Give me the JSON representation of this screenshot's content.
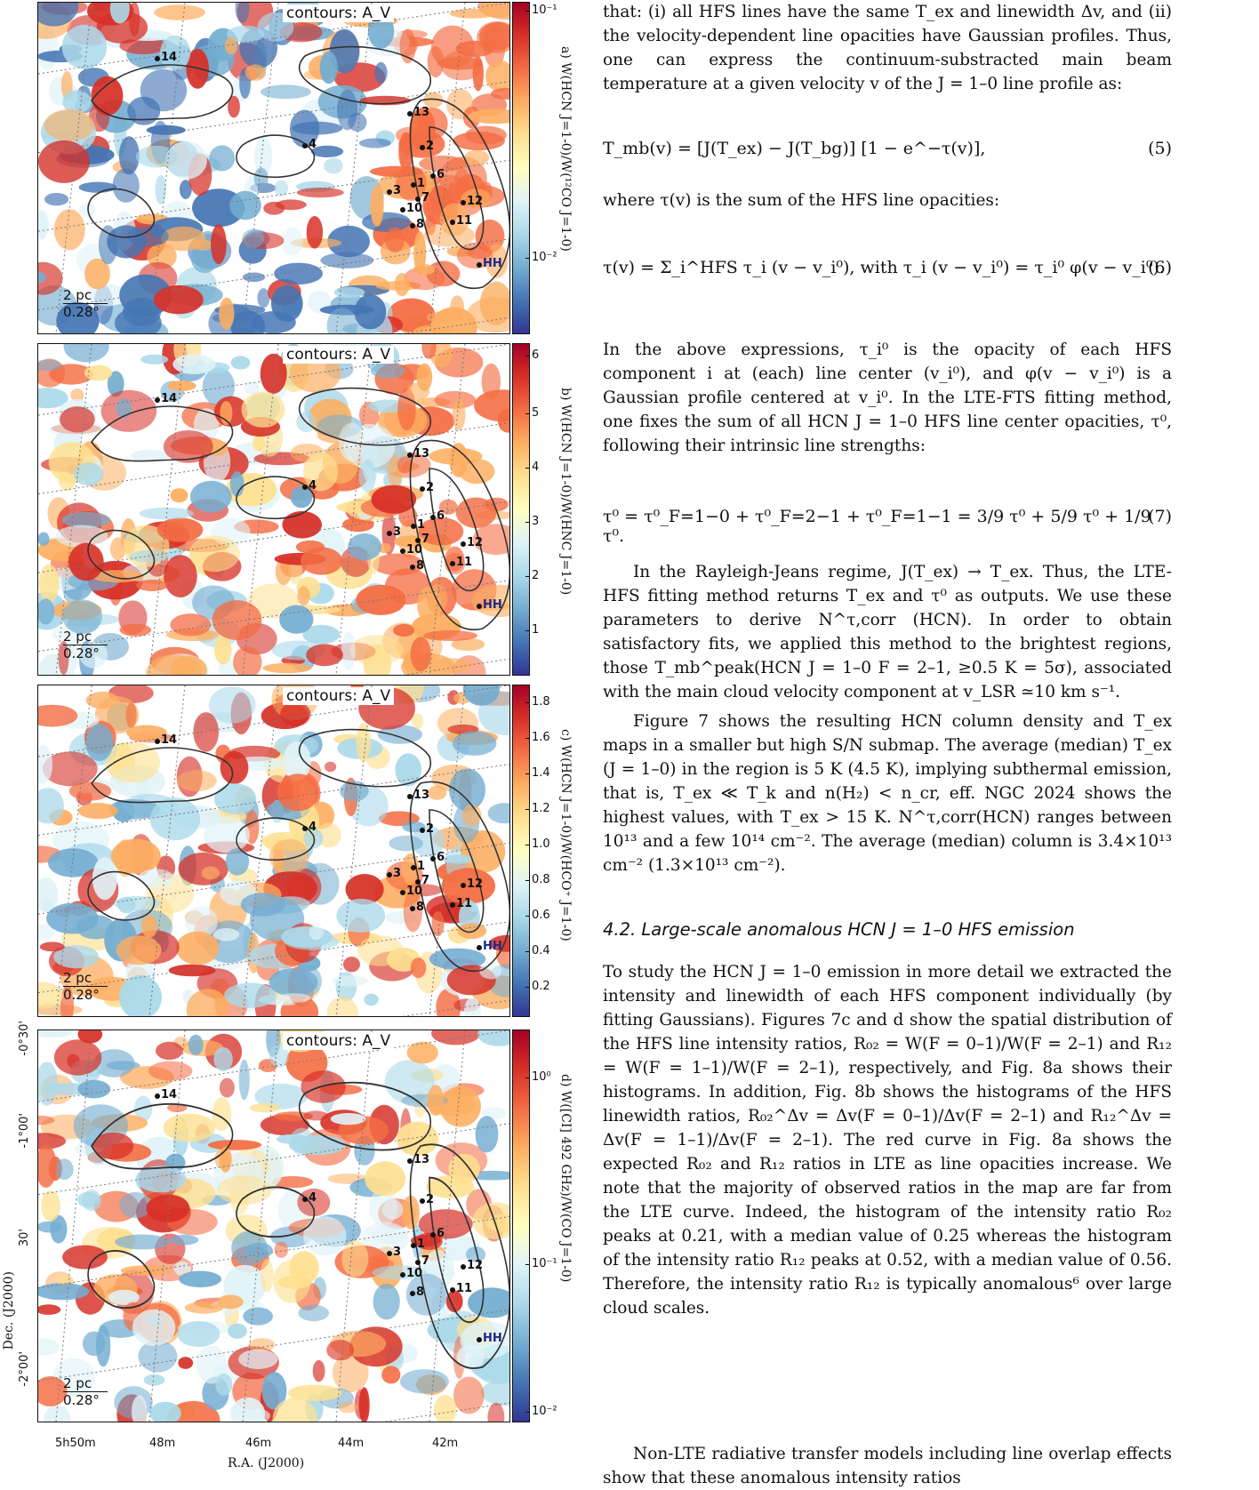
{
  "figure": {
    "contours_label": "contours: A_V",
    "scale_pc": "2 pc",
    "scale_deg": "0.28°",
    "marker_labels": [
      "14",
      "13",
      "2",
      "6",
      "7",
      "1",
      "3",
      "10",
      "8",
      "12",
      "11",
      "4",
      "HH"
    ],
    "panels": [
      {
        "id": "a",
        "cbar_label": "a) W(HCN J=1-0)/W(¹²CO J=1-0)",
        "ticks": [
          "10⁻¹",
          "10⁻²"
        ],
        "colormap": "RdYlBu_r",
        "scale": "log"
      },
      {
        "id": "b",
        "cbar_label": "b) W(HCN J=1-0)/W(HNC J=1-0)",
        "ticks": [
          "6",
          "5",
          "4",
          "3",
          "2",
          "1"
        ],
        "colormap": "RdYlBu_r",
        "scale": "linear"
      },
      {
        "id": "c",
        "cbar_label": "c) W(HCN J=1-0)/W(HCO⁺ J=1-0)",
        "ticks": [
          "1.8",
          "1.6",
          "1.4",
          "1.2",
          "1.0",
          "0.8",
          "0.6",
          "0.4",
          "0.2"
        ],
        "colormap": "RdYlBu_r",
        "scale": "linear"
      },
      {
        "id": "d",
        "cbar_label": "d) W([CI] 492 GHz)/W(CO J=1-0)",
        "ticks": [
          "10⁰",
          "10⁻¹",
          "10⁻²"
        ],
        "colormap": "RdYlBu_r",
        "scale": "log"
      }
    ],
    "dec_label": "Dec. (J2000)",
    "ra_label": "R.A. (J2000)",
    "dec_ticks": [
      "-0°30'",
      "-1°00'",
      "30'",
      "-2°00'"
    ],
    "ra_ticks": [
      "5h50m",
      "48m",
      "46m",
      "44m",
      "42m"
    ]
  },
  "text": {
    "p1": "that: (i) all HFS lines have the same T_ex and linewidth Δv, and (ii) the velocity-dependent line opacities have Gaussian profiles. Thus, one can express the continuum-substracted main beam temperature at a given velocity v of the J = 1–0 line profile as:",
    "eq5": "T_mb(v) = [J(T_ex) − J(T_bg)] [1 − e^−τ(v)],",
    "eq5_num": "(5)",
    "p2": "where τ(v) is the sum of the HFS line opacities:",
    "eq6": "τ(v) = Σ_i^HFS τ_i (v − v_i⁰),   with   τ_i (v − v_i⁰) = τ_i⁰ φ(v − v_i⁰).",
    "eq6_num": "(6)",
    "p3": "In the above expressions, τ_i⁰ is the opacity of each HFS component i at (each) line center (v_i⁰), and φ(v − v_i⁰) is a Gaussian profile centered at v_i⁰. In the LTE-FTS fitting method, one fixes the sum of all HCN J = 1–0 HFS line center opacities, τ⁰, following their intrinsic line strengths:",
    "eq7": "τ⁰ = τ⁰_F=1−0 + τ⁰_F=2−1 + τ⁰_F=1−1 = 3/9 τ⁰ + 5/9 τ⁰ + 1/9 τ⁰.",
    "eq7_num": "(7)",
    "p4": "In the Rayleigh-Jeans regime, J(T_ex) → T_ex. Thus, the LTE-HFS fitting method returns T_ex and τ⁰ as outputs. We use these parameters to derive N^τ,corr (HCN). In order to obtain satisfactory fits, we applied this method to the brightest regions, those T_mb^peak(HCN J = 1–0 F = 2–1, ≥0.5 K = 5σ), associated with the main cloud velocity component at v_LSR ≃10 km s⁻¹.",
    "p5": "Figure 7 shows the resulting HCN column density and T_ex maps in a smaller but high S/N submap. The average (median) T_ex (J = 1–0) in the region is 5 K (4.5 K), implying subthermal emission, that is, T_ex ≪ T_k and n(H₂) < n_cr, eff. NGC 2024 shows the highest values, with T_ex > 15 K. N^τ,corr(HCN) ranges between 10¹³ and a few 10¹⁴ cm⁻². The average (median) column is 3.4×10¹³ cm⁻² (1.3×10¹³ cm⁻²).",
    "section": "4.2. Large-scale anomalous HCN J = 1–0 HFS emission",
    "p6": "To study the HCN J = 1–0 emission in more detail we extracted the intensity and linewidth of each HFS component individually (by fitting Gaussians). Figures 7c and d show the spatial distribution of the HFS line intensity ratios, R₀₂ = W(F = 0–1)/W(F = 2–1) and R₁₂ = W(F = 1–1)/W(F = 2–1), respectively, and Fig. 8a shows their histograms. In addition, Fig. 8b shows the histograms of the HFS linewidth ratios, R₀₂^Δv = Δv(F = 0–1)/Δv(F = 2–1) and R₁₂^Δv = Δv(F = 1–1)/Δv(F = 2–1). The red curve in Fig. 8a shows the expected R₀₂ and R₁₂ ratios in LTE as line opacities increase. We note that the majority of observed ratios in the map are far from the LTE curve. Indeed, the histogram of the intensity ratio R₀₂ peaks at 0.21, with a median value of 0.25 whereas the histogram of the intensity ratio R₁₂ peaks at 0.52, with a median value of 0.56. Therefore, the intensity ratio R₁₂ is typically anomalous⁶ over large cloud scales.",
    "p7": "Non-LTE radiative transfer models including line overlap effects show that these anomalous intensity ratios"
  }
}
